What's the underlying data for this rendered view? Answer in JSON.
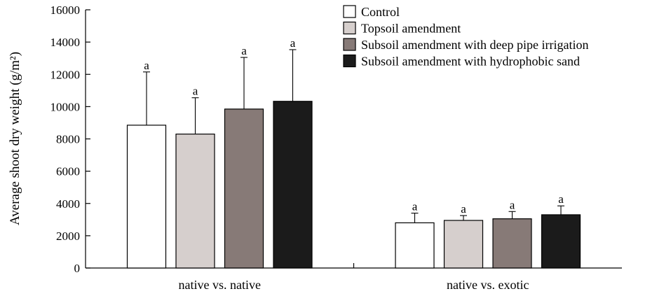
{
  "chart_data": {
    "type": "bar",
    "title": "",
    "xlabel": "",
    "ylabel": "Average shoot dry weight (g/m²)",
    "ylim": [
      0,
      16000
    ],
    "yticks": [
      0,
      2000,
      4000,
      6000,
      8000,
      10000,
      12000,
      14000,
      16000
    ],
    "grid": false,
    "legend_position": "top-right",
    "categories": [
      "native vs. native",
      "native vs. exotic"
    ],
    "series": [
      {
        "name": "Control",
        "color": "#ffffff",
        "values": [
          8850,
          2800
        ],
        "errors": [
          3300,
          600
        ],
        "labels": [
          "a",
          "a"
        ]
      },
      {
        "name": "Topsoil amendment",
        "color": "#d6cfcd",
        "values": [
          8300,
          2950
        ],
        "errors": [
          2250,
          300
        ],
        "labels": [
          "a",
          "a"
        ]
      },
      {
        "name": "Subsoil amendment with deep pipe irrigation",
        "color": "#877a77",
        "values": [
          9850,
          3050
        ],
        "errors": [
          3200,
          450
        ],
        "labels": [
          "a",
          "a"
        ]
      },
      {
        "name": "Subsoil amendment with hydrophobic sand",
        "color": "#1b1b1b",
        "values": [
          10330,
          3300
        ],
        "errors": [
          3200,
          550
        ],
        "labels": [
          "a",
          "a"
        ]
      }
    ]
  }
}
